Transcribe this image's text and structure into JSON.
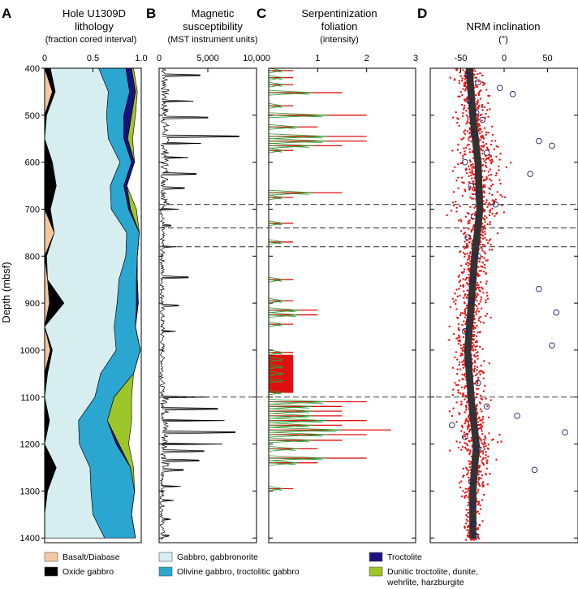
{
  "chart_data": [
    {
      "id": "A",
      "type": "area",
      "panel_letter": "A",
      "title": "Hole U1309D lithology",
      "subtitle": "(fraction cored interval)",
      "ylabel": "Depth (mbsf)",
      "xlim": [
        0,
        1
      ],
      "ylim": [
        1410,
        400
      ],
      "x_ticks": [
        0,
        0.5,
        1.0
      ],
      "x_tick_labels": [
        "0",
        "0.5",
        "1.0"
      ],
      "y_ticks": [
        400,
        500,
        600,
        700,
        800,
        900,
        1000,
        1100,
        1200,
        1300,
        1400
      ],
      "y_tick_labels": [
        "400",
        "500",
        "600",
        "700",
        "800",
        "900",
        "1000",
        "1100",
        "1200",
        "1300",
        "1400"
      ],
      "depth": [
        400,
        450,
        500,
        550,
        600,
        650,
        700,
        750,
        800,
        850,
        900,
        950,
        1000,
        1050,
        1100,
        1150,
        1200,
        1250,
        1300,
        1350,
        1400
      ],
      "stack_order": [
        "basalt",
        "oxide",
        "gabbro",
        "olivine",
        "troctolite",
        "dunitic"
      ],
      "series": [
        {
          "key": "basalt",
          "values": [
            0,
            0.08,
            0,
            0,
            0,
            0,
            0,
            0.1,
            0,
            0.03,
            0.05,
            0,
            0.06,
            0,
            0,
            0,
            0,
            0,
            0,
            0,
            0
          ]
        },
        {
          "key": "oxide",
          "values": [
            0.06,
            0.03,
            0.02,
            0,
            0.08,
            0.12,
            0.06,
            0,
            0.02,
            0,
            0.15,
            0,
            0.02,
            0.03,
            0,
            0.05,
            0,
            0.12,
            0.03,
            0,
            0
          ]
        },
        {
          "key": "gabbro",
          "values": [
            0.5,
            0.55,
            0.62,
            0.66,
            0.7,
            0.56,
            0.63,
            0.75,
            0.82,
            0.74,
            0.55,
            0.72,
            0.66,
            0.55,
            0.52,
            0.3,
            0.36,
            0.35,
            0.45,
            0.5,
            0.62
          ]
        },
        {
          "key": "olivine",
          "values": [
            0.28,
            0.22,
            0.18,
            0.16,
            0.12,
            0.14,
            0.18,
            0.13,
            0.12,
            0.18,
            0.2,
            0.22,
            0.25,
            0.34,
            0.2,
            0.3,
            0.38,
            0.42,
            0.45,
            0.4,
            0.32
          ]
        },
        {
          "key": "troctolite",
          "values": [
            0.06,
            0.06,
            0.08,
            0.04,
            0.03,
            0.03,
            0.02,
            0,
            0,
            0.01,
            0.02,
            0,
            0,
            0,
            0,
            0,
            0.03,
            0,
            0,
            0,
            0
          ]
        },
        {
          "key": "dunitic",
          "values": [
            0.02,
            0.02,
            0.04,
            0.05,
            0,
            0,
            0.06,
            0,
            0,
            0,
            0,
            0,
            0,
            0,
            0.18,
            0.25,
            0.1,
            0.03,
            0,
            0,
            0
          ]
        }
      ]
    },
    {
      "id": "B",
      "type": "line",
      "panel_letter": "B",
      "title": "Magnetic susceptibility",
      "subtitle": "(MST instrument units)",
      "xlim": [
        0,
        10000
      ],
      "ylim": [
        1410,
        400
      ],
      "x_ticks": [
        0,
        5000,
        10000
      ],
      "x_tick_labels": [
        "0",
        "5,000",
        "10,000"
      ],
      "baseline": 300,
      "spikes": [
        {
          "depth": 415,
          "value": 4200
        },
        {
          "depth": 470,
          "value": 3500
        },
        {
          "depth": 505,
          "value": 5000
        },
        {
          "depth": 545,
          "value": 8200
        },
        {
          "depth": 560,
          "value": 4300
        },
        {
          "depth": 590,
          "value": 3000
        },
        {
          "depth": 625,
          "value": 3800
        },
        {
          "depth": 655,
          "value": 2600
        },
        {
          "depth": 700,
          "value": 2000
        },
        {
          "depth": 735,
          "value": 1200
        },
        {
          "depth": 780,
          "value": 1800
        },
        {
          "depth": 845,
          "value": 3000
        },
        {
          "depth": 905,
          "value": 2000
        },
        {
          "depth": 960,
          "value": 1700
        },
        {
          "depth": 1100,
          "value": 5200
        },
        {
          "depth": 1125,
          "value": 6000
        },
        {
          "depth": 1150,
          "value": 6700
        },
        {
          "depth": 1175,
          "value": 7800
        },
        {
          "depth": 1200,
          "value": 6500
        },
        {
          "depth": 1215,
          "value": 4600
        },
        {
          "depth": 1235,
          "value": 4100
        },
        {
          "depth": 1255,
          "value": 2500
        },
        {
          "depth": 1290,
          "value": 2200
        },
        {
          "depth": 1320,
          "value": 1500
        },
        {
          "depth": 1360,
          "value": 1200
        },
        {
          "depth": 1395,
          "value": 1000
        }
      ]
    },
    {
      "id": "C",
      "type": "bar",
      "panel_letter": "C",
      "title": "Serpentinization foliation",
      "subtitle": "(intensity)",
      "xlim": [
        0,
        3
      ],
      "ylim": [
        1410,
        400
      ],
      "x_ticks": [
        1,
        2,
        3
      ],
      "x_tick_labels": [
        "1",
        "2",
        "3"
      ],
      "bars": [
        {
          "depth": 405,
          "value": 0.5
        },
        {
          "depth": 420,
          "value": 0.5
        },
        {
          "depth": 435,
          "value": 0.5
        },
        {
          "depth": 452,
          "value": 1.5
        },
        {
          "depth": 480,
          "value": 0.5
        },
        {
          "depth": 500,
          "value": 2.0
        },
        {
          "depth": 525,
          "value": 1.0
        },
        {
          "depth": 545,
          "value": 2.0
        },
        {
          "depth": 555,
          "value": 2.0
        },
        {
          "depth": 565,
          "value": 1.5
        },
        {
          "depth": 575,
          "value": 0.5
        },
        {
          "depth": 665,
          "value": 1.5
        },
        {
          "depth": 675,
          "value": 0.5
        },
        {
          "depth": 730,
          "value": 0.5
        },
        {
          "depth": 770,
          "value": 0.5
        },
        {
          "depth": 850,
          "value": 0.5
        },
        {
          "depth": 895,
          "value": 0.5
        },
        {
          "depth": 915,
          "value": 1.0
        },
        {
          "depth": 925,
          "value": 1.0
        },
        {
          "depth": 945,
          "value": 0.5
        },
        {
          "depth": 1005,
          "value": 0.5
        },
        {
          "depth": 1020,
          "value": 0.5
        },
        {
          "depth": 1035,
          "value": 0.5
        },
        {
          "depth": 1050,
          "value": 0.5
        },
        {
          "depth": 1065,
          "value": 0.5
        },
        {
          "depth": 1090,
          "value": 0.5
        },
        {
          "depth": 1110,
          "value": 2.0
        },
        {
          "depth": 1120,
          "value": 1.5
        },
        {
          "depth": 1130,
          "value": 1.5
        },
        {
          "depth": 1140,
          "value": 1.5
        },
        {
          "depth": 1150,
          "value": 2.0
        },
        {
          "depth": 1160,
          "value": 1.5
        },
        {
          "depth": 1170,
          "value": 2.5
        },
        {
          "depth": 1180,
          "value": 2.0
        },
        {
          "depth": 1192,
          "value": 1.5
        },
        {
          "depth": 1210,
          "value": 1.0
        },
        {
          "depth": 1230,
          "value": 2.0
        },
        {
          "depth": 1240,
          "value": 1.0
        },
        {
          "depth": 1295,
          "value": 0.5
        }
      ],
      "block": {
        "from": 1010,
        "to": 1090,
        "value": 0.5
      }
    },
    {
      "id": "D",
      "type": "scatter",
      "panel_letter": "D",
      "title": "NRM inclination",
      "subtitle": "(°)",
      "xlim": [
        -85,
        85
      ],
      "ylim": [
        1410,
        400
      ],
      "x_ticks": [
        -50,
        0,
        50
      ],
      "x_tick_labels": [
        "-50",
        "0",
        "50"
      ],
      "trend": [
        {
          "depth": 400,
          "center": -40,
          "spread": 28
        },
        {
          "depth": 500,
          "center": -36,
          "spread": 30
        },
        {
          "depth": 600,
          "center": -30,
          "spread": 40
        },
        {
          "depth": 700,
          "center": -28,
          "spread": 45
        },
        {
          "depth": 800,
          "center": -34,
          "spread": 25
        },
        {
          "depth": 900,
          "center": -38,
          "spread": 30
        },
        {
          "depth": 1000,
          "center": -42,
          "spread": 28
        },
        {
          "depth": 1100,
          "center": -38,
          "spread": 30
        },
        {
          "depth": 1200,
          "center": -32,
          "spread": 36
        },
        {
          "depth": 1300,
          "center": -36,
          "spread": 16
        },
        {
          "depth": 1400,
          "center": -36,
          "spread": 12
        }
      ],
      "circles": [
        {
          "depth": 415,
          "value": -42
        },
        {
          "depth": 430,
          "value": -30
        },
        {
          "depth": 442,
          "value": -5
        },
        {
          "depth": 455,
          "value": 10
        },
        {
          "depth": 470,
          "value": -40
        },
        {
          "depth": 495,
          "value": -32
        },
        {
          "depth": 510,
          "value": -25
        },
        {
          "depth": 540,
          "value": -35
        },
        {
          "depth": 555,
          "value": 40
        },
        {
          "depth": 565,
          "value": 55
        },
        {
          "depth": 580,
          "value": -20
        },
        {
          "depth": 600,
          "value": -45
        },
        {
          "depth": 625,
          "value": 30
        },
        {
          "depth": 650,
          "value": -38
        },
        {
          "depth": 668,
          "value": -30
        },
        {
          "depth": 690,
          "value": -10
        },
        {
          "depth": 715,
          "value": -35
        },
        {
          "depth": 760,
          "value": -42
        },
        {
          "depth": 800,
          "value": -30
        },
        {
          "depth": 850,
          "value": -35
        },
        {
          "depth": 870,
          "value": 40
        },
        {
          "depth": 895,
          "value": -38
        },
        {
          "depth": 920,
          "value": 60
        },
        {
          "depth": 960,
          "value": -45
        },
        {
          "depth": 990,
          "value": 55
        },
        {
          "depth": 1030,
          "value": -40
        },
        {
          "depth": 1070,
          "value": -30
        },
        {
          "depth": 1120,
          "value": -20
        },
        {
          "depth": 1140,
          "value": 15
        },
        {
          "depth": 1160,
          "value": -60
        },
        {
          "depth": 1175,
          "value": 70
        },
        {
          "depth": 1185,
          "value": -45
        },
        {
          "depth": 1210,
          "value": -30
        },
        {
          "depth": 1255,
          "value": 35
        },
        {
          "depth": 1280,
          "value": -38
        },
        {
          "depth": 1330,
          "value": -36
        },
        {
          "depth": 1370,
          "value": -35
        },
        {
          "depth": 1395,
          "value": -33
        }
      ]
    }
  ],
  "dashed_lines": [
    690,
    740,
    780,
    1100
  ],
  "legend": {
    "items": [
      {
        "key": "basalt",
        "label": "Basalt/Diabase",
        "color": "#f5c8a0"
      },
      {
        "key": "gabbro",
        "label": "Gabbro, gabbronorite",
        "color": "#d6eef0"
      },
      {
        "key": "troctolite",
        "label": "Troctolite",
        "color": "#1a127a"
      },
      {
        "key": "oxide",
        "label": "Oxide gabbro",
        "color": "#000000"
      },
      {
        "key": "olivine",
        "label": "Olivine gabbro, troctolitic gabbro",
        "color": "#2aa6d0"
      },
      {
        "key": "dunitic",
        "label": "Dunitic troctolite, dunite,",
        "label2": "wehrlite, harzburgite",
        "color": "#9cc62a"
      }
    ]
  },
  "colors": {
    "scatter_red": "#ee1111",
    "foliation_red": "#e01010",
    "foliation_green": "#339933",
    "mag_line": "#000000"
  }
}
